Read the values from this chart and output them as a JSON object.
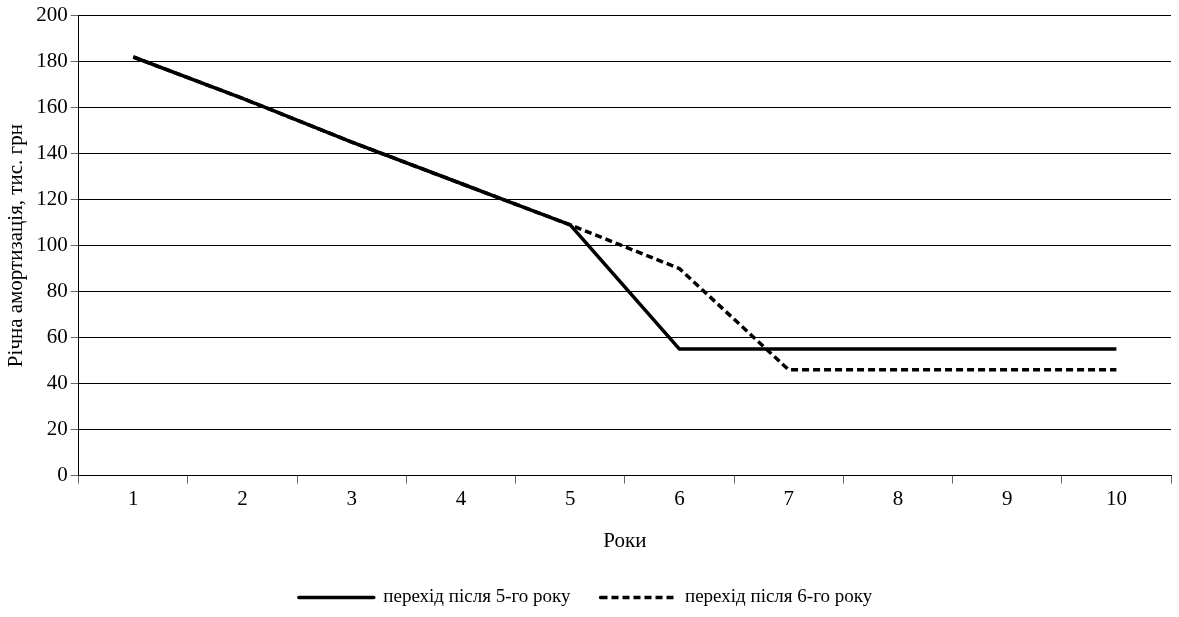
{
  "chart_data": {
    "type": "line",
    "xlabel": "Роки",
    "ylabel": "Річна амортизація, тис. грн",
    "categories": [
      "1",
      "2",
      "3",
      "4",
      "5",
      "6",
      "7",
      "8",
      "9",
      "10"
    ],
    "series": [
      {
        "name": "перехід після 5-го року",
        "color": "#000000",
        "line_style": "solid",
        "values": [
          182,
          164,
          145,
          127,
          109,
          55,
          55,
          55,
          55,
          55
        ]
      },
      {
        "name": "перехід після 6-го року",
        "color": "#000000",
        "line_style": "dashed",
        "values": [
          182,
          164,
          145,
          127,
          109,
          90,
          46,
          46,
          46,
          46
        ]
      }
    ],
    "ylim": [
      0,
      200
    ],
    "yticks": [
      0,
      20,
      40,
      60,
      80,
      100,
      120,
      140,
      160,
      180,
      200
    ],
    "grid": "y",
    "legend": "bottom",
    "marker": "none"
  }
}
